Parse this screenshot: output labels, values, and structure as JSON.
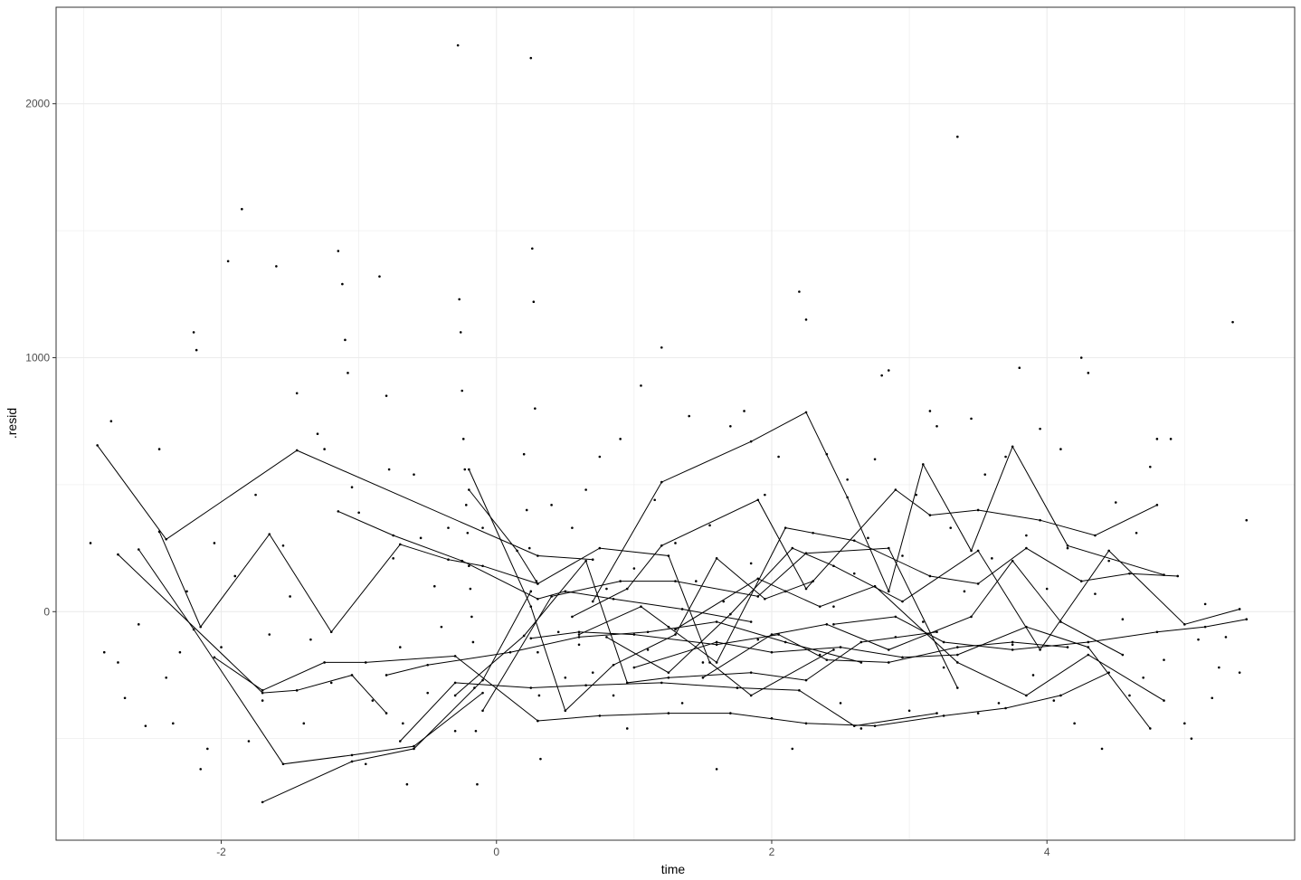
{
  "chart_data": {
    "type": "scatter",
    "title": "",
    "xlabel": "time",
    "ylabel": ".resid",
    "xlim": [
      -3.2,
      5.8
    ],
    "ylim": [
      -900,
      2380
    ],
    "x_ticks": [
      -2,
      0,
      2,
      4
    ],
    "y_ticks": [
      0,
      1000,
      2000
    ],
    "x_tick_labels": [
      "-2",
      "0",
      "2",
      "4"
    ],
    "y_tick_labels": [
      "0",
      "1000",
      "2000"
    ],
    "grid": true,
    "legend": "none",
    "colors": {
      "points": "#000000",
      "lines": "#000000",
      "grid": "#ebebeb",
      "panel_border": "#333333",
      "background": "#ffffff"
    },
    "lines": [
      {
        "x": [
          -2.9,
          -2.4,
          -1.45,
          0.3,
          0.7
        ],
        "y": [
          655,
          285,
          635,
          220,
          205
        ]
      },
      {
        "x": [
          -2.45,
          -2.15,
          -1.65,
          -1.2,
          -0.7,
          -0.35,
          -0.1,
          0.3
        ],
        "y": [
          315,
          -60,
          305,
          -80,
          265,
          205,
          180,
          110
        ]
      },
      {
        "x": [
          -2.75,
          -1.7,
          -1.45,
          -1.05,
          -0.8
        ],
        "y": [
          225,
          -320,
          -310,
          -250,
          -400
        ]
      },
      {
        "x": [
          -2.6,
          -2.2,
          -1.55,
          -1.05,
          -0.6,
          -0.1
        ],
        "y": [
          245,
          -70,
          -600,
          -565,
          -530,
          -320
        ]
      },
      {
        "x": [
          -2.05,
          -1.7,
          -1.25,
          -0.95,
          -0.3,
          0.3
        ],
        "y": [
          -180,
          -310,
          -200,
          -200,
          -175,
          -430
        ]
      },
      {
        "x": [
          -1.7,
          -1.05,
          -0.6,
          -0.1,
          0.25
        ],
        "y": [
          -750,
          -590,
          -540,
          -270,
          80
        ]
      },
      {
        "x": [
          -1.15,
          -0.75,
          -0.25,
          0.3,
          0.5,
          0.85,
          1.35,
          1.85
        ],
        "y": [
          395,
          300,
          200,
          50,
          80,
          50,
          10,
          -40
        ]
      },
      {
        "x": [
          -0.8,
          -0.5,
          0.1,
          0.6,
          1.1,
          1.6,
          2.1,
          2.65
        ],
        "y": [
          -250,
          -210,
          -160,
          -100,
          -80,
          -40,
          -120,
          -200
        ]
      },
      {
        "x": [
          -0.7,
          -0.3,
          0.25,
          0.65,
          1.2,
          1.75,
          2.2,
          2.6,
          3.2
        ],
        "y": [
          -510,
          -280,
          -300,
          -290,
          -280,
          -300,
          -310,
          -450,
          -400
        ]
      },
      {
        "x": [
          -0.2,
          0.25,
          0.5,
          0.85,
          1.3,
          1.6,
          1.95,
          2.3
        ],
        "y": [
          560,
          20,
          -390,
          -210,
          -90,
          210,
          50,
          120
        ]
      },
      {
        "x": [
          -0.2,
          0.15,
          0.3,
          0.75,
          1.25,
          1.55,
          1.85,
          2.45
        ],
        "y": [
          480,
          240,
          110,
          250,
          220,
          -200,
          -330,
          -150
        ]
      },
      {
        "x": [
          -0.1,
          0.4,
          0.9,
          1.3,
          1.9,
          2.25,
          2.85,
          3.35
        ],
        "y": [
          -390,
          60,
          120,
          120,
          60,
          230,
          250,
          -300
        ]
      },
      {
        "x": [
          -0.3,
          0.2,
          0.65,
          0.95,
          1.25,
          1.85,
          2.25,
          2.65,
          3.2
        ],
        "y": [
          -330,
          -95,
          200,
          -280,
          -260,
          -240,
          -270,
          -120,
          -80
        ]
      },
      {
        "x": [
          0.25,
          0.6,
          1.0,
          1.6,
          2.05,
          2.4,
          2.85,
          3.35,
          3.75,
          4.15
        ],
        "y": [
          -105,
          -80,
          -90,
          -130,
          -90,
          -190,
          -200,
          -140,
          -120,
          -140
        ]
      },
      {
        "x": [
          0.3,
          0.75,
          1.25,
          1.7,
          2.25,
          2.75,
          3.25,
          3.7,
          4.1,
          4.45
        ],
        "y": [
          -430,
          -410,
          -400,
          -400,
          -440,
          -450,
          -410,
          -380,
          -330,
          -240
        ]
      },
      {
        "x": [
          0.55,
          0.95,
          1.2,
          1.9,
          2.25,
          2.9,
          3.15,
          3.5,
          3.95,
          4.35,
          4.8
        ],
        "y": [
          -20,
          90,
          260,
          440,
          90,
          480,
          380,
          400,
          360,
          300,
          420
        ]
      },
      {
        "x": [
          0.7,
          1.2,
          1.85,
          2.25,
          2.55,
          2.85,
          3.1,
          3.45,
          3.75,
          4.15,
          4.85
        ],
        "y": [
          40,
          510,
          670,
          785,
          450,
          80,
          580,
          240,
          650,
          260,
          145
        ]
      },
      {
        "x": [
          0.6,
          1.05,
          1.6,
          2.1,
          2.6,
          3.15,
          3.5,
          3.85,
          4.25,
          4.6,
          4.95
        ],
        "y": [
          -90,
          20,
          -200,
          330,
          280,
          140,
          110,
          250,
          120,
          150,
          140
        ]
      },
      {
        "x": [
          0.8,
          1.25,
          1.7,
          2.15,
          2.45,
          2.95,
          3.5,
          3.95,
          4.45,
          5.0,
          5.4
        ],
        "y": [
          -100,
          -240,
          -10,
          250,
          180,
          40,
          240,
          -150,
          240,
          -50,
          10
        ]
      },
      {
        "x": [
          1.0,
          1.6,
          2.0,
          2.5,
          2.95,
          3.35,
          3.85,
          4.3,
          4.75
        ],
        "y": [
          -220,
          -120,
          -160,
          -140,
          -180,
          -170,
          -60,
          -140,
          -460
        ]
      },
      {
        "x": [
          1.3,
          1.9,
          2.35,
          2.75,
          3.35,
          3.85,
          4.3,
          4.85
        ],
        "y": [
          -70,
          130,
          20,
          100,
          -200,
          -330,
          -170,
          -350
        ]
      },
      {
        "x": [
          1.5,
          2.0,
          2.4,
          2.85,
          3.45,
          3.75,
          4.1,
          4.55
        ],
        "y": [
          -260,
          -90,
          -50,
          -150,
          -20,
          200,
          -40,
          -170
        ]
      },
      {
        "x": [
          2.45,
          2.9,
          3.25,
          3.75,
          4.3,
          4.8,
          5.15,
          5.45
        ],
        "y": [
          -50,
          -20,
          -120,
          -150,
          -120,
          -80,
          -60,
          -30
        ]
      }
    ],
    "points": [
      {
        "x": -2.95,
        "y": 270
      },
      {
        "x": -2.85,
        "y": -160
      },
      {
        "x": -2.8,
        "y": 750
      },
      {
        "x": -2.75,
        "y": -200
      },
      {
        "x": -2.7,
        "y": -340
      },
      {
        "x": -2.6,
        "y": -50
      },
      {
        "x": -2.55,
        "y": -450
      },
      {
        "x": -2.45,
        "y": 640
      },
      {
        "x": -2.4,
        "y": -260
      },
      {
        "x": -2.35,
        "y": -440
      },
      {
        "x": -2.3,
        "y": -160
      },
      {
        "x": -2.25,
        "y": 80
      },
      {
        "x": -2.2,
        "y": 1100
      },
      {
        "x": -2.18,
        "y": 1030
      },
      {
        "x": -2.15,
        "y": -620
      },
      {
        "x": -2.1,
        "y": -540
      },
      {
        "x": -2.05,
        "y": 270
      },
      {
        "x": -2.0,
        "y": -140
      },
      {
        "x": -1.95,
        "y": 1380
      },
      {
        "x": -1.9,
        "y": 140
      },
      {
        "x": -1.85,
        "y": 1585
      },
      {
        "x": -1.8,
        "y": -510
      },
      {
        "x": -1.75,
        "y": 460
      },
      {
        "x": -1.7,
        "y": -350
      },
      {
        "x": -1.65,
        "y": -90
      },
      {
        "x": -1.6,
        "y": 1360
      },
      {
        "x": -1.55,
        "y": 260
      },
      {
        "x": -1.5,
        "y": 60
      },
      {
        "x": -1.45,
        "y": 860
      },
      {
        "x": -1.4,
        "y": -440
      },
      {
        "x": -1.35,
        "y": -110
      },
      {
        "x": -1.3,
        "y": 700
      },
      {
        "x": -1.25,
        "y": 640
      },
      {
        "x": -1.2,
        "y": -280
      },
      {
        "x": -1.15,
        "y": 1420
      },
      {
        "x": -1.12,
        "y": 1290
      },
      {
        "x": -1.1,
        "y": 1070
      },
      {
        "x": -1.08,
        "y": 940
      },
      {
        "x": -1.05,
        "y": 490
      },
      {
        "x": -1.0,
        "y": 390
      },
      {
        "x": -0.95,
        "y": -600
      },
      {
        "x": -0.9,
        "y": -350
      },
      {
        "x": -0.85,
        "y": 1320
      },
      {
        "x": -0.8,
        "y": 850
      },
      {
        "x": -0.78,
        "y": 560
      },
      {
        "x": -0.75,
        "y": 210
      },
      {
        "x": -0.7,
        "y": -140
      },
      {
        "x": -0.68,
        "y": -440
      },
      {
        "x": -0.65,
        "y": -680
      },
      {
        "x": -0.6,
        "y": 540
      },
      {
        "x": -0.55,
        "y": 290
      },
      {
        "x": -0.5,
        "y": -320
      },
      {
        "x": -0.45,
        "y": 100
      },
      {
        "x": -0.4,
        "y": -60
      },
      {
        "x": -0.35,
        "y": 330
      },
      {
        "x": -0.3,
        "y": -470
      },
      {
        "x": -0.28,
        "y": 2230
      },
      {
        "x": -0.27,
        "y": 1230
      },
      {
        "x": -0.26,
        "y": 1100
      },
      {
        "x": -0.25,
        "y": 870
      },
      {
        "x": -0.24,
        "y": 680
      },
      {
        "x": -0.23,
        "y": 560
      },
      {
        "x": -0.22,
        "y": 420
      },
      {
        "x": -0.21,
        "y": 310
      },
      {
        "x": -0.2,
        "y": 180
      },
      {
        "x": -0.19,
        "y": 90
      },
      {
        "x": -0.18,
        "y": -20
      },
      {
        "x": -0.17,
        "y": -120
      },
      {
        "x": -0.16,
        "y": -300
      },
      {
        "x": -0.15,
        "y": -470
      },
      {
        "x": -0.14,
        "y": -680
      },
      {
        "x": -0.1,
        "y": 330
      },
      {
        "x": 0.2,
        "y": 620
      },
      {
        "x": 0.22,
        "y": 400
      },
      {
        "x": 0.24,
        "y": 250
      },
      {
        "x": 0.25,
        "y": 2180
      },
      {
        "x": 0.26,
        "y": 1430
      },
      {
        "x": 0.27,
        "y": 1220
      },
      {
        "x": 0.28,
        "y": 800
      },
      {
        "x": 0.29,
        "y": 120
      },
      {
        "x": 0.3,
        "y": -160
      },
      {
        "x": 0.31,
        "y": -330
      },
      {
        "x": 0.32,
        "y": -580
      },
      {
        "x": 0.4,
        "y": 420
      },
      {
        "x": 0.45,
        "y": -80
      },
      {
        "x": 0.5,
        "y": -260
      },
      {
        "x": 0.55,
        "y": 330
      },
      {
        "x": 0.6,
        "y": -130
      },
      {
        "x": 0.65,
        "y": 480
      },
      {
        "x": 0.7,
        "y": -240
      },
      {
        "x": 0.75,
        "y": 610
      },
      {
        "x": 0.8,
        "y": 90
      },
      {
        "x": 0.85,
        "y": -330
      },
      {
        "x": 0.9,
        "y": 680
      },
      {
        "x": 0.95,
        "y": -460
      },
      {
        "x": 1.0,
        "y": 170
      },
      {
        "x": 1.05,
        "y": 890
      },
      {
        "x": 1.1,
        "y": -150
      },
      {
        "x": 1.15,
        "y": 440
      },
      {
        "x": 1.2,
        "y": 1040
      },
      {
        "x": 1.25,
        "y": -60
      },
      {
        "x": 1.3,
        "y": 270
      },
      {
        "x": 1.35,
        "y": -360
      },
      {
        "x": 1.4,
        "y": 770
      },
      {
        "x": 1.45,
        "y": 120
      },
      {
        "x": 1.5,
        "y": -200
      },
      {
        "x": 1.55,
        "y": 340
      },
      {
        "x": 1.6,
        "y": -620
      },
      {
        "x": 1.65,
        "y": 40
      },
      {
        "x": 1.7,
        "y": 730
      },
      {
        "x": 1.75,
        "y": -300
      },
      {
        "x": 1.8,
        "y": 790
      },
      {
        "x": 1.85,
        "y": 190
      },
      {
        "x": 1.9,
        "y": -110
      },
      {
        "x": 1.95,
        "y": 460
      },
      {
        "x": 2.0,
        "y": -420
      },
      {
        "x": 2.05,
        "y": 610
      },
      {
        "x": 2.1,
        "y": 80
      },
      {
        "x": 2.15,
        "y": -540
      },
      {
        "x": 2.2,
        "y": 1260
      },
      {
        "x": 2.25,
        "y": 1150
      },
      {
        "x": 2.3,
        "y": 310
      },
      {
        "x": 2.35,
        "y": -170
      },
      {
        "x": 2.4,
        "y": 620
      },
      {
        "x": 2.45,
        "y": 20
      },
      {
        "x": 2.5,
        "y": -360
      },
      {
        "x": 2.55,
        "y": 520
      },
      {
        "x": 2.6,
        "y": 150
      },
      {
        "x": 2.65,
        "y": -460
      },
      {
        "x": 2.7,
        "y": 290
      },
      {
        "x": 2.75,
        "y": 600
      },
      {
        "x": 2.8,
        "y": 930
      },
      {
        "x": 2.85,
        "y": 950
      },
      {
        "x": 2.9,
        "y": -100
      },
      {
        "x": 2.95,
        "y": 220
      },
      {
        "x": 3.0,
        "y": -390
      },
      {
        "x": 3.05,
        "y": 460
      },
      {
        "x": 3.1,
        "y": -40
      },
      {
        "x": 3.15,
        "y": 790
      },
      {
        "x": 3.2,
        "y": 730
      },
      {
        "x": 3.25,
        "y": -220
      },
      {
        "x": 3.3,
        "y": 330
      },
      {
        "x": 3.35,
        "y": 1870
      },
      {
        "x": 3.4,
        "y": 80
      },
      {
        "x": 3.45,
        "y": 760
      },
      {
        "x": 3.5,
        "y": -400
      },
      {
        "x": 3.55,
        "y": 540
      },
      {
        "x": 3.6,
        "y": 210
      },
      {
        "x": 3.65,
        "y": -360
      },
      {
        "x": 3.7,
        "y": 610
      },
      {
        "x": 3.75,
        "y": -130
      },
      {
        "x": 3.8,
        "y": 960
      },
      {
        "x": 3.85,
        "y": 300
      },
      {
        "x": 3.9,
        "y": -250
      },
      {
        "x": 3.95,
        "y": 720
      },
      {
        "x": 4.0,
        "y": 90
      },
      {
        "x": 4.05,
        "y": -350
      },
      {
        "x": 4.1,
        "y": 640
      },
      {
        "x": 4.15,
        "y": 250
      },
      {
        "x": 4.2,
        "y": -440
      },
      {
        "x": 4.25,
        "y": 1000
      },
      {
        "x": 4.3,
        "y": 940
      },
      {
        "x": 4.35,
        "y": 70
      },
      {
        "x": 4.4,
        "y": -540
      },
      {
        "x": 4.45,
        "y": 200
      },
      {
        "x": 4.5,
        "y": 430
      },
      {
        "x": 4.55,
        "y": -30
      },
      {
        "x": 4.6,
        "y": -330
      },
      {
        "x": 4.65,
        "y": 310
      },
      {
        "x": 4.7,
        "y": -260
      },
      {
        "x": 4.75,
        "y": 570
      },
      {
        "x": 4.8,
        "y": 680
      },
      {
        "x": 4.85,
        "y": -190
      },
      {
        "x": 4.9,
        "y": 680
      },
      {
        "x": 5.0,
        "y": -440
      },
      {
        "x": 5.05,
        "y": -500
      },
      {
        "x": 5.1,
        "y": -110
      },
      {
        "x": 5.15,
        "y": 30
      },
      {
        "x": 5.2,
        "y": -340
      },
      {
        "x": 5.25,
        "y": -220
      },
      {
        "x": 5.3,
        "y": -100
      },
      {
        "x": 5.35,
        "y": 1140
      },
      {
        "x": 5.4,
        "y": -240
      },
      {
        "x": 5.45,
        "y": 360
      }
    ]
  }
}
